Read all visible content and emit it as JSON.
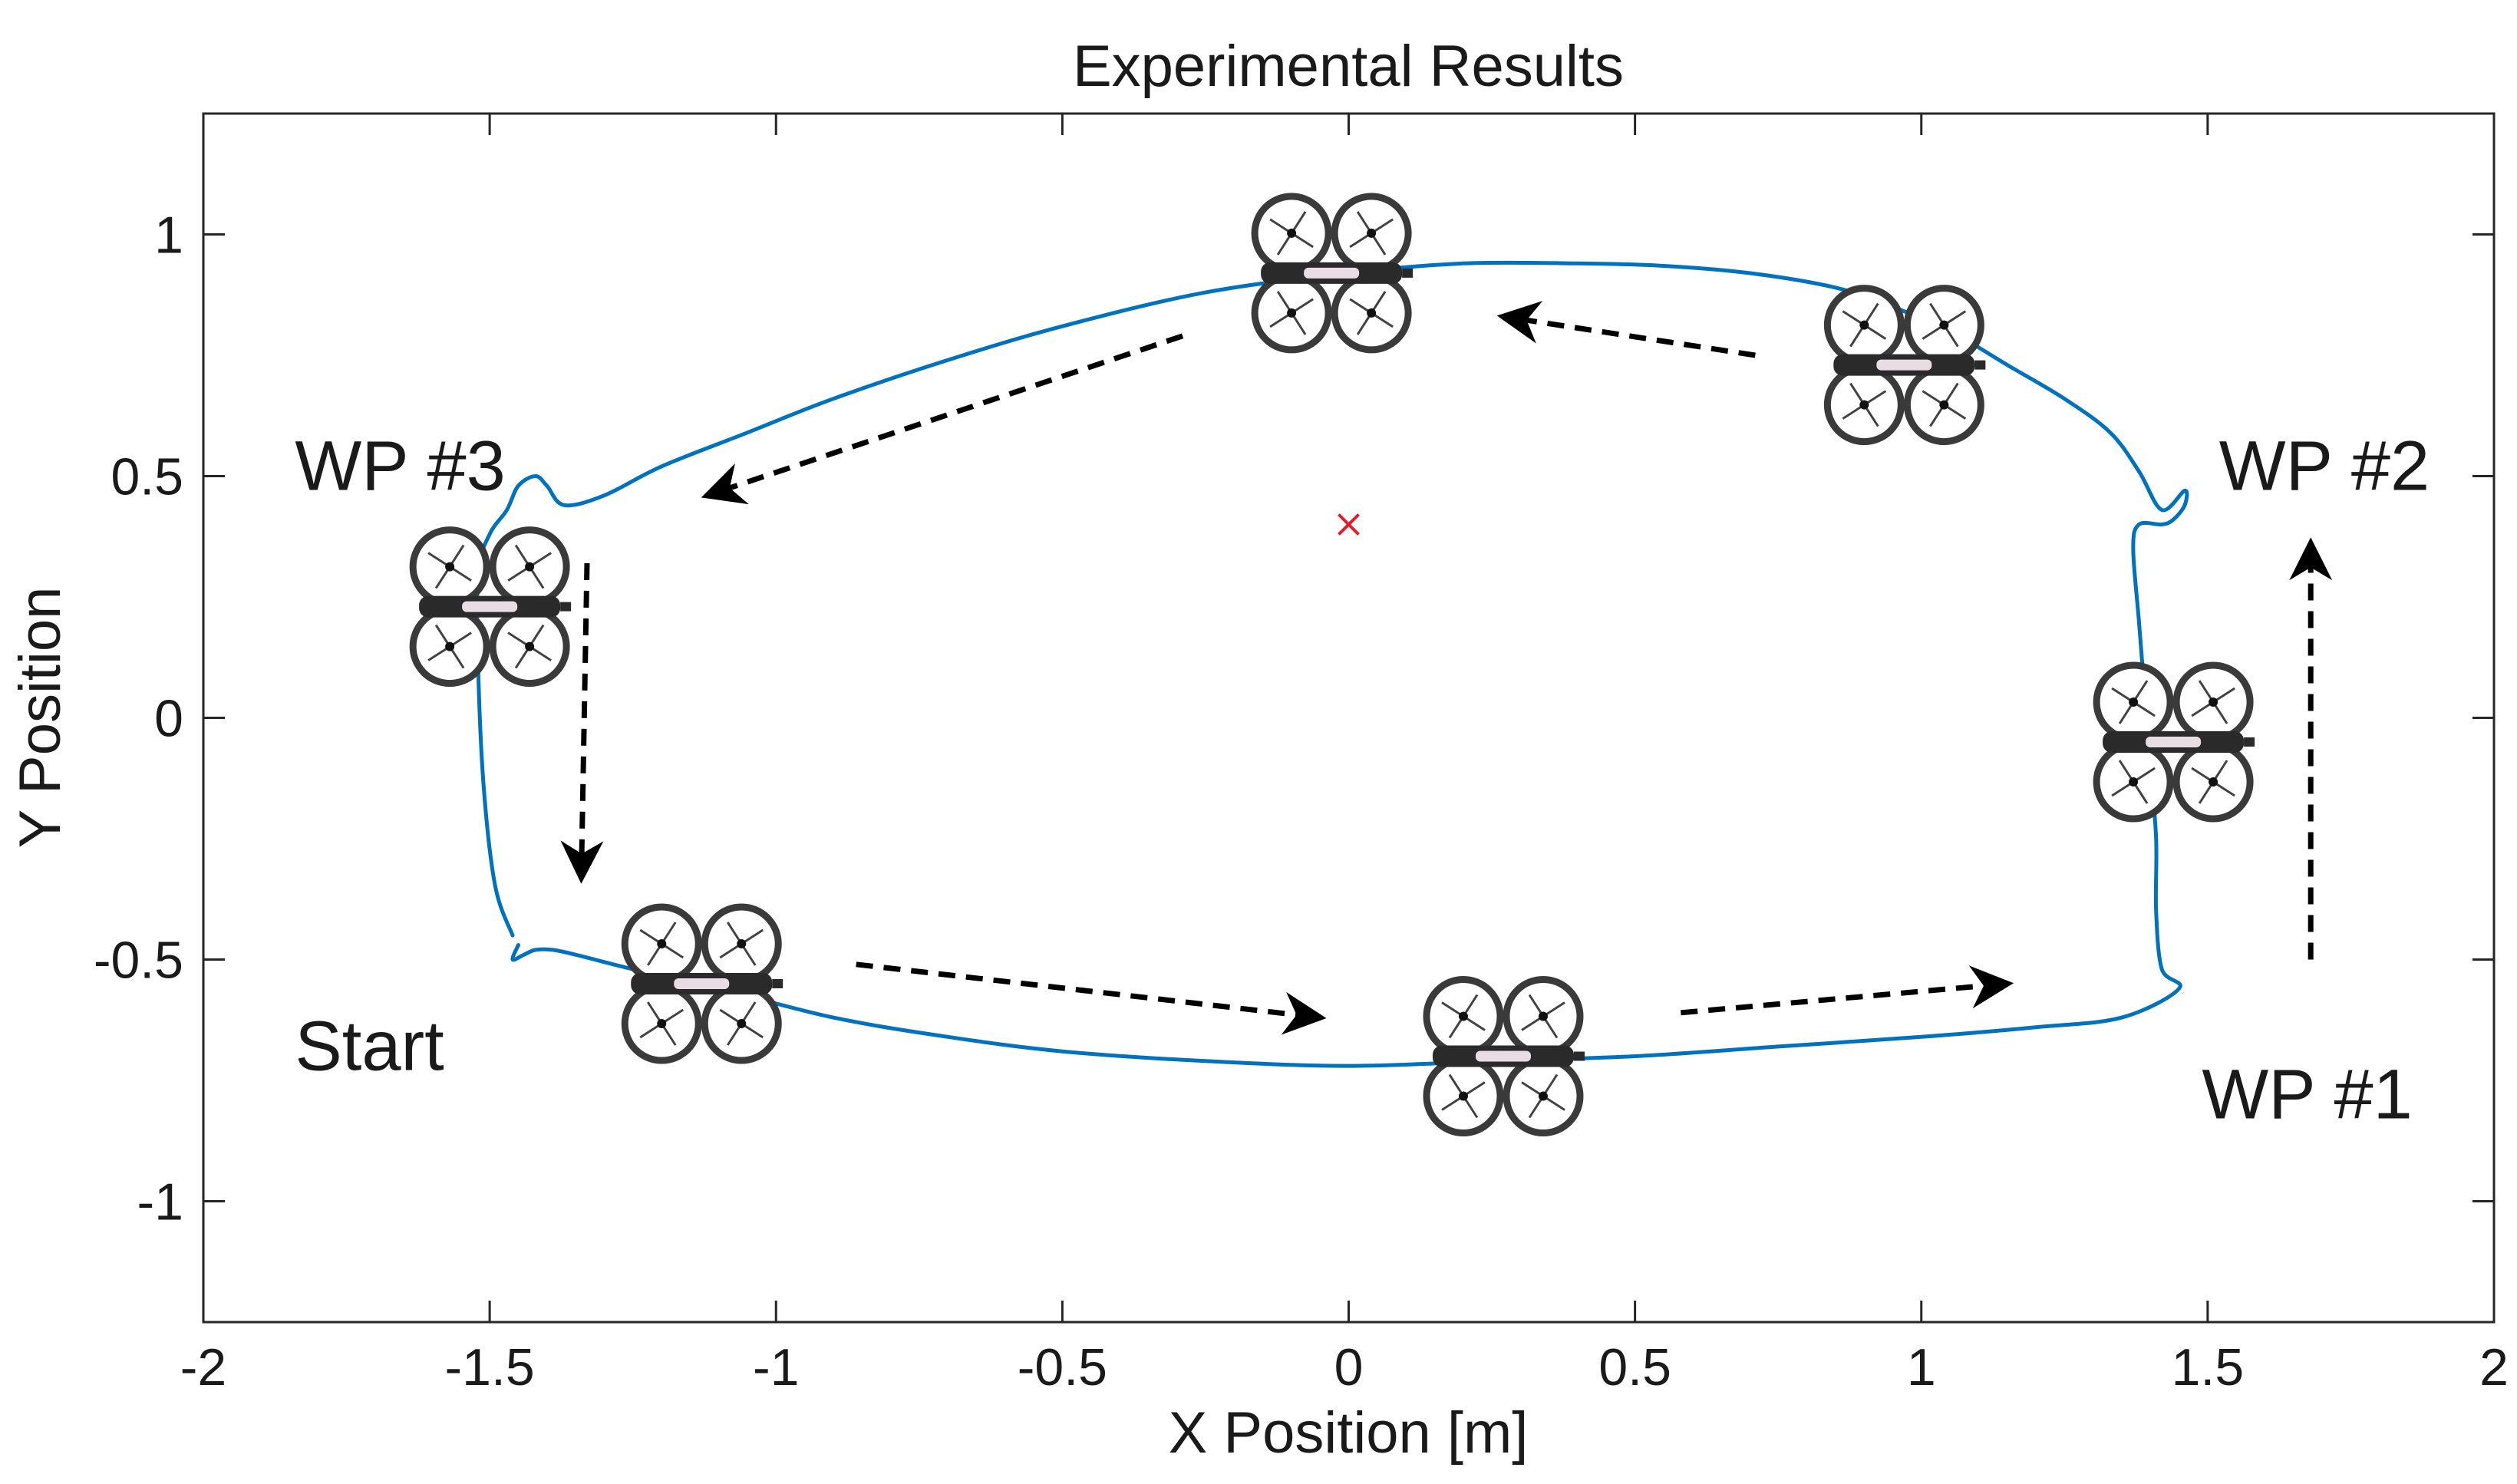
{
  "chart_data": {
    "type": "line",
    "title": "Experimental Results",
    "xlabel": "X Position [m]",
    "ylabel": "Y Position",
    "xlim": [
      -2,
      2
    ],
    "ylim": [
      -1.25,
      1.25
    ],
    "xticks": [
      -2,
      -1.5,
      -1,
      -0.5,
      0,
      0.5,
      1,
      1.5,
      2
    ],
    "yticks": [
      -1,
      -0.5,
      0,
      0.5,
      1
    ],
    "xtick_labels": [
      "-2",
      "-1.5",
      "-1",
      "-0.5",
      "0",
      "0.5",
      "1",
      "1.5",
      "2"
    ],
    "ytick_labels": [
      "-1",
      "-0.5",
      "0",
      "0.5",
      "1"
    ],
    "grid": false,
    "series": [
      {
        "name": "trajectory",
        "color": "#0072BD",
        "x": [
          -1.45,
          -1.46,
          -1.44,
          -1.42,
          -1.39,
          -1.35,
          -1.25,
          -1.1,
          -0.9,
          -0.7,
          -0.5,
          -0.25,
          0,
          0.25,
          0.5,
          0.75,
          1.0,
          1.2,
          1.35,
          1.45,
          1.42,
          1.41,
          1.41,
          1.4,
          1.39,
          1.38,
          1.37,
          1.38,
          1.42,
          1.44,
          1.46,
          1.46,
          1.42,
          1.38,
          1.33,
          1.25,
          1.15,
          1.05,
          0.95,
          0.85,
          0.7,
          0.55,
          0.4,
          0.2,
          0.0,
          -0.25,
          -0.5,
          -0.7,
          -0.9,
          -1.05,
          -1.2,
          -1.3,
          -1.37,
          -1.4,
          -1.42,
          -1.45,
          -1.47,
          -1.5,
          -1.52,
          -1.52,
          -1.51,
          -1.49,
          -1.46
        ],
        "y": [
          -0.47,
          -0.5,
          -0.49,
          -0.48,
          -0.48,
          -0.49,
          -0.52,
          -0.56,
          -0.62,
          -0.66,
          -0.69,
          -0.71,
          -0.72,
          -0.71,
          -0.7,
          -0.68,
          -0.66,
          -0.64,
          -0.62,
          -0.56,
          -0.52,
          -0.4,
          -0.25,
          -0.1,
          0.05,
          0.2,
          0.35,
          0.4,
          0.4,
          0.41,
          0.44,
          0.47,
          0.43,
          0.51,
          0.59,
          0.66,
          0.73,
          0.8,
          0.85,
          0.89,
          0.92,
          0.935,
          0.94,
          0.94,
          0.92,
          0.88,
          0.81,
          0.74,
          0.66,
          0.59,
          0.52,
          0.46,
          0.44,
          0.48,
          0.5,
          0.48,
          0.43,
          0.38,
          0.3,
          0.1,
          -0.15,
          -0.35,
          -0.45
        ]
      },
      {
        "name": "center",
        "color": "#E8192C",
        "marker": "x",
        "x": [
          0
        ],
        "y": [
          0.4
        ]
      }
    ],
    "annotations": [
      {
        "text": "WP #3",
        "x": -1.84,
        "y": 0.5
      },
      {
        "text": "WP #2",
        "x": 1.52,
        "y": 0.5
      },
      {
        "text": "WP #1",
        "x": 1.49,
        "y": -0.8
      },
      {
        "text": "Start",
        "x": -1.84,
        "y": -0.7
      }
    ],
    "arrows": [
      {
        "x1": -0.29,
        "y1": 0.79,
        "x2": -1.12,
        "y2": 0.46
      },
      {
        "x1": 0.71,
        "y1": 0.75,
        "x2": 0.27,
        "y2": 0.83
      },
      {
        "x1": -1.33,
        "y1": 0.32,
        "x2": -1.34,
        "y2": -0.33
      },
      {
        "x1": -0.86,
        "y1": -0.51,
        "x2": -0.05,
        "y2": -0.62
      },
      {
        "x1": 0.58,
        "y1": -0.61,
        "x2": 1.15,
        "y2": -0.55
      },
      {
        "x1": 1.68,
        "y1": -0.5,
        "x2": 1.68,
        "y2": 0.36
      }
    ],
    "drones": [
      {
        "x": -0.03,
        "y": 0.92
      },
      {
        "x": 0.97,
        "y": 0.73
      },
      {
        "x": -1.5,
        "y": 0.23
      },
      {
        "x": 1.44,
        "y": -0.05
      },
      {
        "x": -1.13,
        "y": -0.55
      },
      {
        "x": 0.27,
        "y": -0.7
      }
    ]
  }
}
